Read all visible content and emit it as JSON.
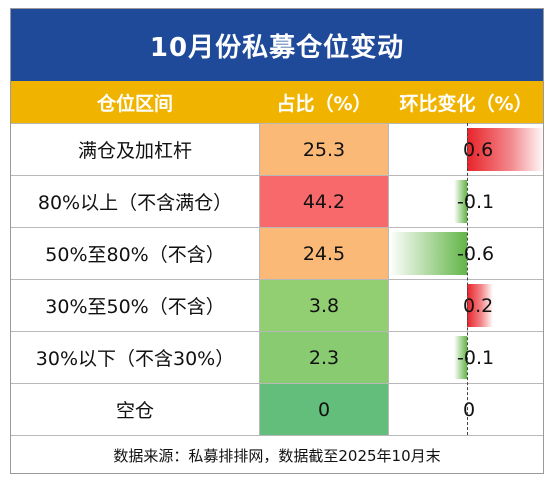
{
  "title": "10月份私募仓位变动",
  "headers": {
    "category": "仓位区间",
    "share": "占比（%）",
    "change": "环比变化（%）"
  },
  "source": "数据来源：私募排排网，数据截至2025年10月末",
  "colors": {
    "header_bg": "#1f4a9a",
    "subheader_bg": "#f0b400",
    "pos_bar": "#e8232a",
    "neg_bar": "#63b548"
  },
  "chart_data": {
    "type": "table",
    "title": "10月份私募仓位变动",
    "columns": [
      "仓位区间",
      "占比（%）",
      "环比变化（%）"
    ],
    "rows": [
      {
        "category": "满仓及加杠杆",
        "share": "25.3",
        "change": "0.6",
        "change_value": 0.6,
        "share_color": "#fbb977"
      },
      {
        "category": "80%以上（不含满仓）",
        "share": "44.2",
        "change": "-0.1",
        "change_value": -0.1,
        "share_color": "#f8696b"
      },
      {
        "category": "50%至80%（不含）",
        "share": "24.5",
        "change": "-0.6",
        "change_value": -0.6,
        "share_color": "#fbb977"
      },
      {
        "category": "30%至50%（不含）",
        "share": "3.8",
        "change": "0.2",
        "change_value": 0.2,
        "share_color": "#92cf72"
      },
      {
        "category": "30%以下（不含30%）",
        "share": "2.3",
        "change": "-0.1",
        "change_value": -0.1,
        "share_color": "#89cb71"
      },
      {
        "category": "空仓",
        "share": "0",
        "change": "0",
        "change_value": 0,
        "share_color": "#63be7b"
      }
    ]
  }
}
